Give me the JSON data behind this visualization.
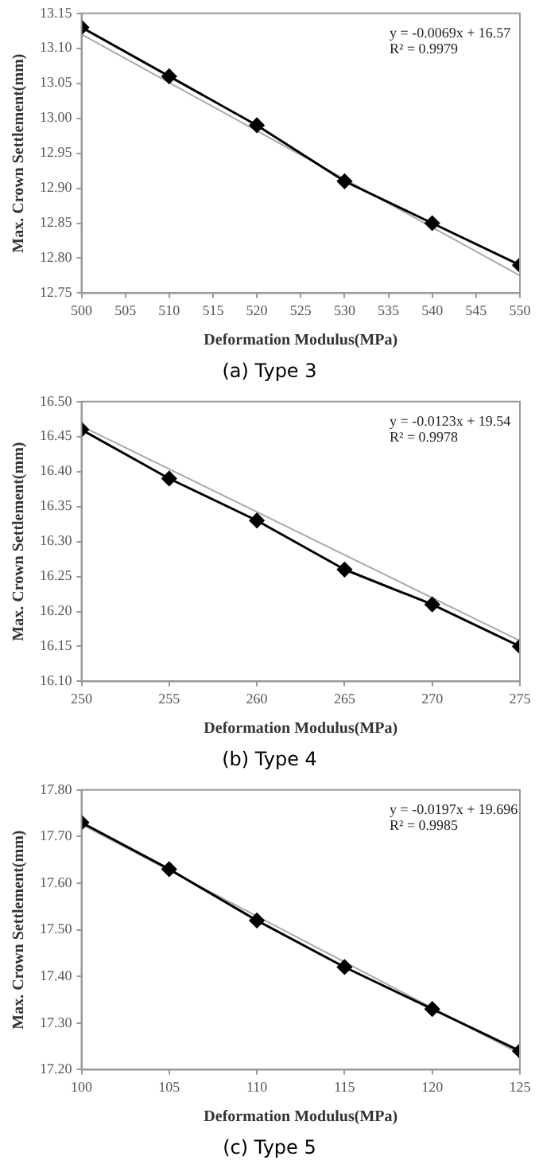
{
  "chart_data": [
    {
      "type": "line",
      "title": "(a) Type 3",
      "xlabel": "Deformation Modulus(MPa)",
      "ylabel": "Max. Crown Settlement(mm)",
      "x": [
        500,
        510,
        520,
        530,
        540,
        550
      ],
      "xlim": [
        500,
        550
      ],
      "xticks": [
        500,
        505,
        510,
        515,
        520,
        525,
        530,
        535,
        540,
        545,
        550
      ],
      "ylim": [
        12.75,
        13.15
      ],
      "yticks": [
        12.75,
        {
          "value": 12.8,
          "label": "12.80"
        },
        12.85,
        {
          "value": 12.9,
          "label": "12.90"
        },
        12.95,
        {
          "value": 13.0,
          "label": "13.00"
        },
        13.05,
        {
          "value": 13.1,
          "label": "13.10"
        },
        13.15
      ],
      "grid": false,
      "legend": false,
      "annotations": [
        "y = -0.0069x + 16.57",
        "R² = 0.9979"
      ],
      "series": [
        {
          "color": "#000000",
          "values": [
            13.13,
            13.06,
            12.99,
            12.91,
            12.85,
            12.79
          ],
          "marker": "diamond"
        },
        {
          "type": "line",
          "color": "#aaaaaa",
          "x": [
            500,
            550
          ],
          "values": [
            13.12,
            12.775
          ],
          "marker": "none"
        }
      ]
    },
    {
      "type": "line",
      "title": "(b) Type 4",
      "xlabel": "Deformation Modulus(MPa)",
      "ylabel": "Max. Crown Settlement(mm)",
      "x": [
        250,
        255,
        260,
        265,
        270,
        275
      ],
      "xlim": [
        250,
        275
      ],
      "xticks": [
        250,
        255,
        260,
        265,
        270,
        275
      ],
      "ylim": [
        16.1,
        16.5
      ],
      "yticks": [
        {
          "value": 16.1,
          "label": "16.10"
        },
        16.15,
        {
          "value": 16.2,
          "label": "16.20"
        },
        16.25,
        {
          "value": 16.3,
          "label": "16.30"
        },
        16.35,
        {
          "value": 16.4,
          "label": "16.40"
        },
        16.45,
        {
          "value": 16.5,
          "label": "16.50"
        }
      ],
      "grid": false,
      "legend": false,
      "annotations": [
        "y = -0.0123x + 19.54",
        "R² = 0.9978"
      ],
      "series": [
        {
          "color": "#000000",
          "values": [
            16.46,
            16.39,
            16.33,
            16.26,
            16.21,
            16.15
          ],
          "marker": "diamond"
        },
        {
          "type": "line",
          "color": "#aaaaaa",
          "x": [
            250,
            275
          ],
          "values": [
            16.465,
            16.158
          ],
          "marker": "none"
        }
      ]
    },
    {
      "type": "line",
      "title": "(c) Type 5",
      "xlabel": "Deformation Modulus(MPa)",
      "ylabel": "Max. Crown Settlement(mm)",
      "x": [
        100,
        105,
        110,
        115,
        120,
        125
      ],
      "xlim": [
        100,
        125
      ],
      "xticks": [
        100,
        105,
        110,
        115,
        120,
        125
      ],
      "ylim": [
        17.2,
        17.8
      ],
      "yticks": [
        {
          "value": 17.2,
          "label": "17.20"
        },
        {
          "value": 17.3,
          "label": "17.30"
        },
        {
          "value": 17.4,
          "label": "17.40"
        },
        {
          "value": 17.5,
          "label": "17.50"
        },
        {
          "value": 17.6,
          "label": "17.60"
        },
        {
          "value": 17.7,
          "label": "17.70"
        },
        {
          "value": 17.8,
          "label": "17.80"
        }
      ],
      "grid": false,
      "legend": false,
      "annotations": [
        "y = -0.0197x + 19.696",
        "R² = 0.9985"
      ],
      "series": [
        {
          "color": "#000000",
          "values": [
            17.73,
            17.63,
            17.52,
            17.42,
            17.33,
            17.24
          ],
          "marker": "diamond"
        },
        {
          "type": "line",
          "color": "#aaaaaa",
          "x": [
            100,
            125
          ],
          "values": [
            17.726,
            17.234
          ],
          "marker": "none"
        }
      ]
    }
  ]
}
